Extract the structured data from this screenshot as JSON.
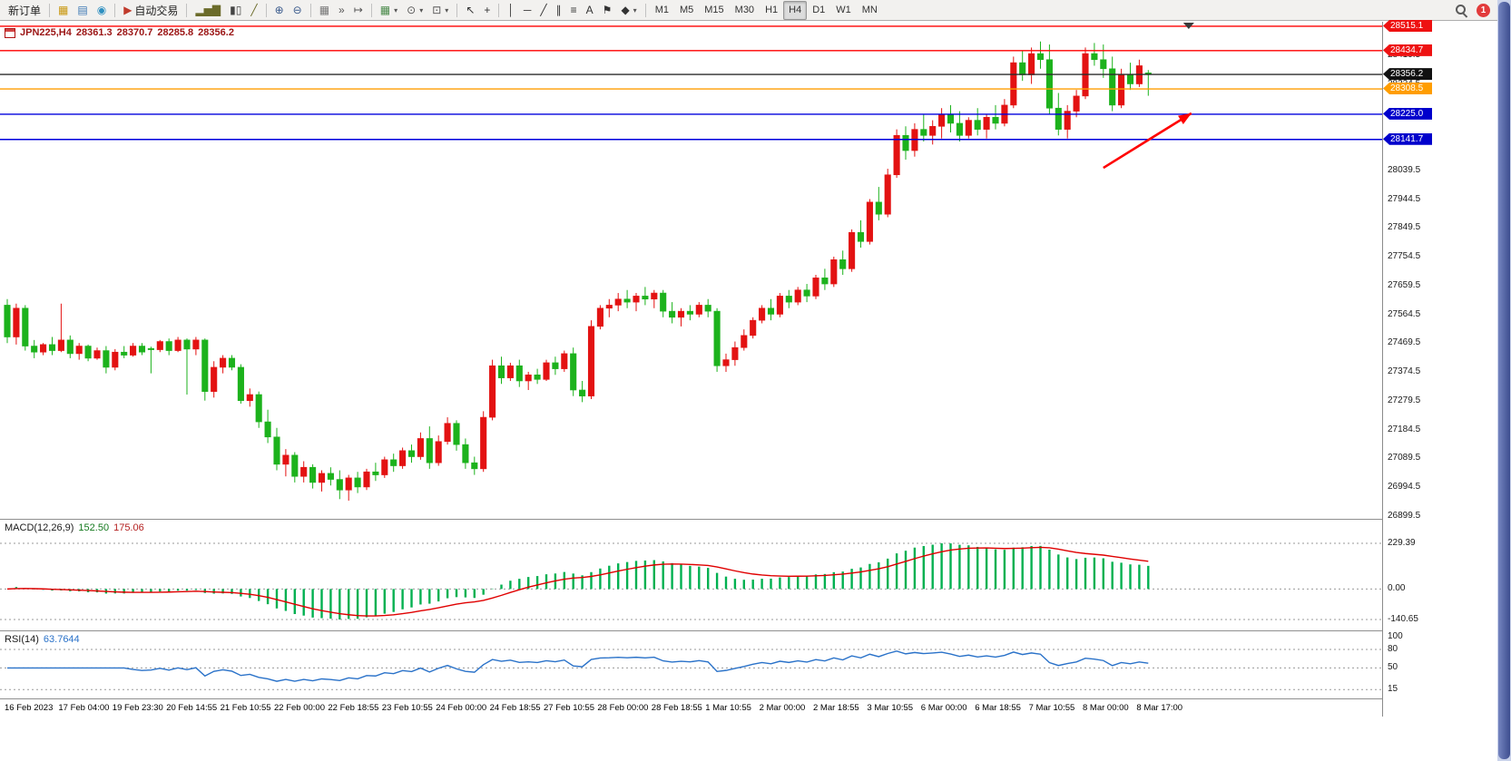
{
  "toolbar": {
    "notification_count": "1",
    "groups": [
      {
        "name": "trade",
        "items": [
          {
            "base": "new-order",
            "label": "新订单"
          }
        ]
      },
      {
        "name": "panels",
        "items": [
          {
            "base": "market-watch",
            "glyph": "▦",
            "color": "#c8960c"
          },
          {
            "base": "data-window",
            "glyph": "▤",
            "color": "#3c78b4"
          },
          {
            "base": "navigator",
            "glyph": "◉",
            "color": "#2e8fc0"
          }
        ]
      },
      {
        "name": "autotrade",
        "items": [
          {
            "base": "auto-trading",
            "label": "自动交易",
            "glyph": "▶",
            "color": "#c03a2b"
          }
        ]
      },
      {
        "name": "chart-type",
        "items": [
          {
            "base": "bar-chart",
            "glyph": "▂▅▇",
            "color": "#6b6b2a"
          },
          {
            "base": "candlestick-chart",
            "glyph": "▮▯",
            "color": "#444444"
          },
          {
            "base": "line-chart",
            "glyph": "╱",
            "color": "#6b6b2a"
          }
        ]
      },
      {
        "name": "zoom",
        "items": [
          {
            "base": "zoom-in",
            "glyph": "⊕",
            "color": "#3a5a8c"
          },
          {
            "base": "zoom-out",
            "glyph": "⊖",
            "color": "#3a5a8c"
          }
        ]
      },
      {
        "name": "chart-options",
        "items": [
          {
            "base": "tile-windows",
            "glyph": "▦",
            "color": "#777777"
          },
          {
            "base": "auto-scroll",
            "glyph": "»",
            "color": "#555555"
          },
          {
            "base": "chart-shift",
            "glyph": "↦",
            "color": "#555555"
          }
        ]
      },
      {
        "name": "objects",
        "items": [
          {
            "base": "new-chart",
            "glyph": "▦",
            "color": "#4a8a4a",
            "dropdown": true
          },
          {
            "base": "periods",
            "glyph": "⊙",
            "color": "#555555",
            "dropdown": true
          },
          {
            "base": "templates",
            "glyph": "⊡",
            "color": "#555555",
            "dropdown": true
          }
        ]
      },
      {
        "name": "pointer",
        "items": [
          {
            "base": "cursor",
            "glyph": "↖",
            "color": "#333333"
          },
          {
            "base": "crosshair",
            "glyph": "+",
            "color": "#333333"
          }
        ]
      },
      {
        "name": "draw",
        "items": [
          {
            "base": "vertical-line",
            "glyph": "│",
            "color": "#333333"
          },
          {
            "base": "horizontal-line",
            "glyph": "─",
            "color": "#333333"
          },
          {
            "base": "trendline",
            "glyph": "╱",
            "color": "#333333"
          },
          {
            "base": "channel",
            "glyph": "∥",
            "color": "#333333"
          },
          {
            "base": "fibonacci",
            "glyph": "≡",
            "color": "#333333"
          },
          {
            "base": "text",
            "glyph": "A",
            "color": "#333333"
          },
          {
            "base": "text-label",
            "glyph": "⚑",
            "color": "#333333"
          },
          {
            "base": "shapes",
            "glyph": "◆",
            "color": "#333333",
            "dropdown": true
          }
        ]
      },
      {
        "name": "timeframes",
        "items": [
          {
            "base": "timeframe-m1",
            "label": "M1",
            "small": true
          },
          {
            "base": "timeframe-m5",
            "label": "M5",
            "small": true
          },
          {
            "base": "timeframe-m15",
            "label": "M15",
            "small": true
          },
          {
            "base": "timeframe-m30",
            "label": "M30",
            "small": true
          },
          {
            "base": "timeframe-h1",
            "label": "H1",
            "small": true
          },
          {
            "base": "timeframe-h4",
            "label": "H4",
            "small": true,
            "active": true
          },
          {
            "base": "timeframe-d1",
            "label": "D1",
            "small": true
          },
          {
            "base": "timeframe-w1",
            "label": "W1",
            "small": true
          },
          {
            "base": "timeframe-mn",
            "label": "MN",
            "small": true
          }
        ]
      }
    ]
  },
  "chart": {
    "symbol_period": "JPN225,H4",
    "open": "28361.3",
    "high": "28370.7",
    "low": "28285.8",
    "close": "28356.2"
  },
  "chart_data": {
    "type": "candlestick",
    "symbol": "JPN225",
    "timeframe": "H4",
    "bull_color": "#e31212",
    "bear_color": "#1cb21c",
    "ylim": [
      26890,
      28530
    ],
    "y_axis_labels": [
      "28514.5",
      "28419.5",
      "28324.5",
      "28229.5",
      "28134.5",
      "28039.5",
      "27944.5",
      "27849.5",
      "27754.5",
      "27659.5",
      "27564.5",
      "27469.5",
      "27374.5",
      "27279.5",
      "27184.5",
      "27089.5",
      "26994.5",
      "26899.5"
    ],
    "hlines": [
      {
        "value": 28515.1,
        "label": "28515.1",
        "color": "#ff0000",
        "badge": "#ee1111"
      },
      {
        "value": 28434.7,
        "label": "28434.7",
        "color": "#ff0000",
        "badge": "#ee1111"
      },
      {
        "value": 28356.2,
        "label": "28356.2",
        "color": "#2b2b2b",
        "badge": "#111111"
      },
      {
        "value": 28308.5,
        "label": "28308.5",
        "color": "#ff9d00",
        "badge": "#ff9d00"
      },
      {
        "value": 28225.0,
        "label": "28225.0",
        "color": "#0000dd",
        "badge": "#0000cc"
      },
      {
        "value": 28141.7,
        "label": "28141.7",
        "color": "#0000dd",
        "badge": "#0000cc"
      }
    ],
    "x_labels": [
      "16 Feb 2023",
      "17 Feb 04:00",
      "19 Feb 23:30",
      "20 Feb 14:55",
      "21 Feb 10:55",
      "22 Feb 00:00",
      "22 Feb 18:55",
      "23 Feb 10:55",
      "24 Feb 00:00",
      "24 Feb 18:55",
      "27 Feb 10:55",
      "28 Feb 00:00",
      "28 Feb 18:55",
      "1 Mar 10:55",
      "2 Mar 00:00",
      "2 Mar 18:55",
      "3 Mar 10:55",
      "6 Mar 00:00",
      "6 Mar 18:55",
      "7 Mar 10:55",
      "8 Mar 00:00",
      "8 Mar 17:00"
    ],
    "candles_per_label": 6,
    "shift_marker_index": 131.5,
    "annotations": [
      {
        "type": "arrow",
        "from_index": 122,
        "from_price": 28048,
        "to_index": 131.8,
        "to_price": 28228,
        "color": "#ff0000"
      }
    ],
    "candles": [
      [
        27595,
        27615,
        27470,
        27490
      ],
      [
        27490,
        27600,
        27465,
        27585
      ],
      [
        27585,
        27595,
        27445,
        27460
      ],
      [
        27460,
        27480,
        27420,
        27440
      ],
      [
        27440,
        27470,
        27430,
        27465
      ],
      [
        27465,
        27490,
        27430,
        27445
      ],
      [
        27445,
        27600,
        27440,
        27480
      ],
      [
        27480,
        27495,
        27420,
        27435
      ],
      [
        27435,
        27470,
        27415,
        27460
      ],
      [
        27460,
        27465,
        27410,
        27420
      ],
      [
        27420,
        27455,
        27415,
        27445
      ],
      [
        27445,
        27460,
        27370,
        27390
      ],
      [
        27390,
        27450,
        27380,
        27440
      ],
      [
        27440,
        27460,
        27420,
        27430
      ],
      [
        27430,
        27470,
        27425,
        27460
      ],
      [
        27460,
        27470,
        27430,
        27440
      ],
      [
        27452,
        27458,
        27370,
        27448
      ],
      [
        27448,
        27480,
        27440,
        27475
      ],
      [
        27475,
        27485,
        27430,
        27445
      ],
      [
        27445,
        27490,
        27440,
        27480
      ],
      [
        27480,
        27485,
        27300,
        27450
      ],
      [
        27450,
        27490,
        27430,
        27480
      ],
      [
        27480,
        27485,
        27280,
        27310
      ],
      [
        27310,
        27410,
        27290,
        27390
      ],
      [
        27390,
        27430,
        27370,
        27420
      ],
      [
        27420,
        27430,
        27380,
        27390
      ],
      [
        27390,
        27400,
        27270,
        27280
      ],
      [
        27280,
        27320,
        27260,
        27300
      ],
      [
        27300,
        27310,
        27190,
        27210
      ],
      [
        27210,
        27250,
        27140,
        27160
      ],
      [
        27160,
        27190,
        27050,
        27070
      ],
      [
        27070,
        27120,
        27030,
        27100
      ],
      [
        27100,
        27110,
        27010,
        27030
      ],
      [
        27030,
        27080,
        27010,
        27060
      ],
      [
        27060,
        27070,
        26990,
        27010
      ],
      [
        27010,
        27050,
        26980,
        27040
      ],
      [
        27040,
        27060,
        27000,
        27020
      ],
      [
        27020,
        27050,
        26955,
        26985
      ],
      [
        26985,
        27035,
        26950,
        27025
      ],
      [
        27025,
        27045,
        26975,
        26995
      ],
      [
        26995,
        27055,
        26985,
        27045
      ],
      [
        27045,
        27075,
        27015,
        27035
      ],
      [
        27035,
        27095,
        27025,
        27085
      ],
      [
        27085,
        27105,
        27045,
        27065
      ],
      [
        27065,
        27125,
        27055,
        27115
      ],
      [
        27115,
        27135,
        27075,
        27095
      ],
      [
        27095,
        27175,
        27085,
        27155
      ],
      [
        27155,
        27195,
        27055,
        27075
      ],
      [
        27075,
        27165,
        27065,
        27145
      ],
      [
        27145,
        27225,
        27135,
        27205
      ],
      [
        27205,
        27215,
        27115,
        27135
      ],
      [
        27135,
        27155,
        27055,
        27075
      ],
      [
        27075,
        27095,
        27035,
        27055
      ],
      [
        27055,
        27245,
        27045,
        27225
      ],
      [
        27225,
        27415,
        27215,
        27395
      ],
      [
        27395,
        27425,
        27335,
        27355
      ],
      [
        27355,
        27405,
        27345,
        27395
      ],
      [
        27395,
        27415,
        27325,
        27345
      ],
      [
        27345,
        27375,
        27315,
        27365
      ],
      [
        27365,
        27385,
        27335,
        27350
      ],
      [
        27350,
        27415,
        27345,
        27405
      ],
      [
        27405,
        27425,
        27365,
        27385
      ],
      [
        27385,
        27445,
        27375,
        27435
      ],
      [
        27435,
        27455,
        27295,
        27315
      ],
      [
        27315,
        27345,
        27275,
        27295
      ],
      [
        27295,
        27545,
        27285,
        27525
      ],
      [
        27525,
        27595,
        27515,
        27585
      ],
      [
        27585,
        27615,
        27555,
        27595
      ],
      [
        27595,
        27635,
        27575,
        27615
      ],
      [
        27615,
        27645,
        27585,
        27605
      ],
      [
        27605,
        27635,
        27575,
        27625
      ],
      [
        27625,
        27655,
        27595,
        27615
      ],
      [
        27615,
        27645,
        27585,
        27635
      ],
      [
        27635,
        27645,
        27555,
        27575
      ],
      [
        27575,
        27605,
        27535,
        27555
      ],
      [
        27555,
        27585,
        27525,
        27575
      ],
      [
        27575,
        27595,
        27545,
        27565
      ],
      [
        27565,
        27605,
        27555,
        27595
      ],
      [
        27595,
        27615,
        27555,
        27575
      ],
      [
        27575,
        27585,
        27375,
        27395
      ],
      [
        27395,
        27435,
        27375,
        27415
      ],
      [
        27415,
        27475,
        27395,
        27455
      ],
      [
        27455,
        27515,
        27445,
        27495
      ],
      [
        27495,
        27555,
        27485,
        27545
      ],
      [
        27545,
        27595,
        27535,
        27585
      ],
      [
        27585,
        27615,
        27545,
        27565
      ],
      [
        27565,
        27635,
        27555,
        27625
      ],
      [
        27625,
        27645,
        27585,
        27605
      ],
      [
        27605,
        27655,
        27595,
        27645
      ],
      [
        27645,
        27665,
        27605,
        27625
      ],
      [
        27625,
        27695,
        27615,
        27685
      ],
      [
        27685,
        27715,
        27645,
        27665
      ],
      [
        27665,
        27755,
        27655,
        27745
      ],
      [
        27745,
        27775,
        27695,
        27715
      ],
      [
        27715,
        27845,
        27705,
        27835
      ],
      [
        27835,
        27875,
        27785,
        27805
      ],
      [
        27805,
        27945,
        27795,
        27935
      ],
      [
        27935,
        27985,
        27875,
        27895
      ],
      [
        27895,
        28045,
        27885,
        28025
      ],
      [
        28025,
        28175,
        28015,
        28155
      ],
      [
        28155,
        28185,
        28075,
        28105
      ],
      [
        28105,
        28195,
        28085,
        28175
      ],
      [
        28175,
        28225,
        28135,
        28155
      ],
      [
        28155,
        28205,
        28125,
        28185
      ],
      [
        28185,
        28245,
        28145,
        28225
      ],
      [
        28225,
        28255,
        28165,
        28195
      ],
      [
        28195,
        28235,
        28135,
        28155
      ],
      [
        28155,
        28215,
        28145,
        28205
      ],
      [
        28205,
        28245,
        28155,
        28175
      ],
      [
        28175,
        28225,
        28145,
        28215
      ],
      [
        28215,
        28255,
        28175,
        28195
      ],
      [
        28195,
        28275,
        28185,
        28255
      ],
      [
        28255,
        28415,
        28245,
        28395
      ],
      [
        28395,
        28435,
        28335,
        28355
      ],
      [
        28355,
        28445,
        28325,
        28425
      ],
      [
        28425,
        28465,
        28375,
        28405
      ],
      [
        28405,
        28455,
        28225,
        28245
      ],
      [
        28245,
        28295,
        28155,
        28175
      ],
      [
        28175,
        28255,
        28145,
        28235
      ],
      [
        28235,
        28305,
        28215,
        28285
      ],
      [
        28285,
        28445,
        28275,
        28425
      ],
      [
        28425,
        28460,
        28385,
        28405
      ],
      [
        28405,
        28455,
        28345,
        28375
      ],
      [
        28375,
        28415,
        28235,
        28255
      ],
      [
        28255,
        28375,
        28245,
        28355
      ],
      [
        28355,
        28395,
        28305,
        28325
      ],
      [
        28325,
        28405,
        28315,
        28385
      ],
      [
        28361.3,
        28370.7,
        28285.8,
        28356.2
      ]
    ],
    "macd": {
      "type": "bar",
      "label": "MACD(12,26,9)",
      "value_main": "152.50",
      "value_signal": "175.06",
      "params": [
        12,
        26,
        9
      ],
      "histogram_color": "#00b050",
      "signal_color": "#e00000",
      "axis_labels": [
        "229.39",
        "0.00",
        "-140.65"
      ]
    },
    "rsi": {
      "type": "line",
      "label": "RSI(14)",
      "value": "63.7644",
      "period": 14,
      "line_color": "#2a72c9",
      "levels": [
        80,
        50,
        15
      ],
      "axis_labels": [
        "100",
        "80",
        "50",
        "15"
      ],
      "axis_values": [
        100,
        80,
        50,
        15
      ]
    }
  }
}
